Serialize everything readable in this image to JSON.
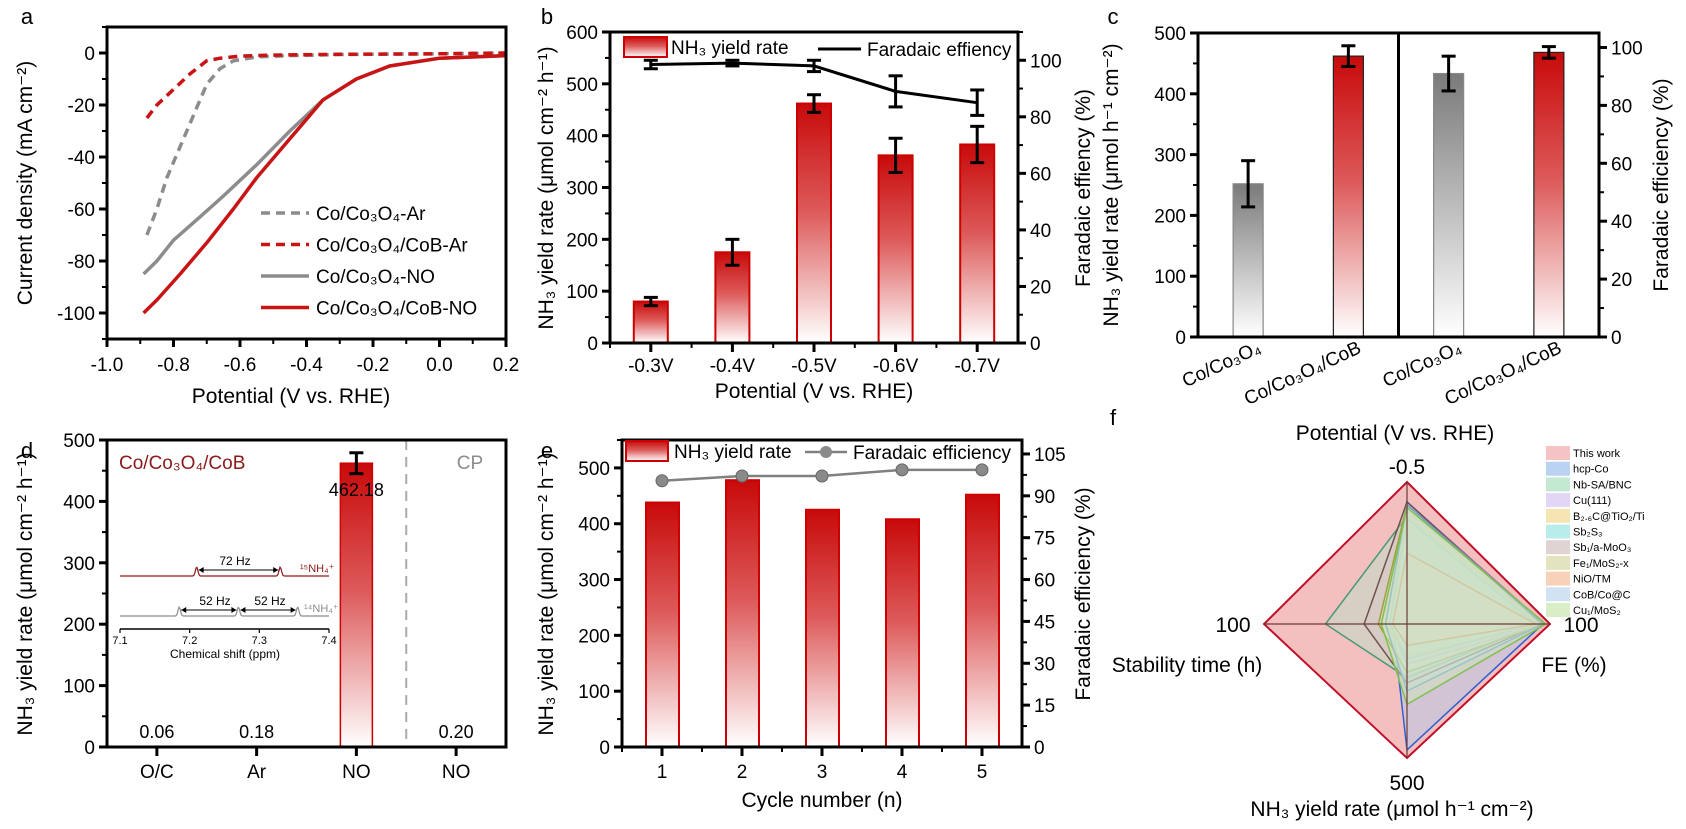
{
  "panel_labels": [
    "a",
    "b",
    "c",
    "d",
    "e",
    "f"
  ],
  "chart_data": [
    {
      "panel": "a",
      "type": "line",
      "xlabel": "Potential (V vs. RHE)",
      "ylabel": "Current density (mA cm⁻²)",
      "xlim": [
        -1.0,
        0.2
      ],
      "ylim": [
        -110,
        10
      ],
      "xticks": [
        "-1.0",
        "-0.8",
        "-0.6",
        "-0.4",
        "-0.2",
        "0.0",
        "0.2"
      ],
      "yticks": [
        "0",
        "-20",
        "-40",
        "-60",
        "-80",
        "-100"
      ],
      "legend_position": "bottom-right",
      "series": [
        {
          "name": "Co/Co₃O₄-Ar",
          "color": "#8c8c8c",
          "dashed": true,
          "x": [
            -0.88,
            -0.85,
            -0.82,
            -0.78,
            -0.74,
            -0.7,
            -0.66,
            -0.62,
            -0.55,
            -0.45,
            -0.3,
            0,
            0.2
          ],
          "y": [
            -70,
            -60,
            -48,
            -36,
            -24,
            -12,
            -6,
            -3,
            -1.5,
            -1,
            -0.6,
            -0.3,
            0
          ]
        },
        {
          "name": "Co/Co₃O₄/CoB-Ar",
          "color": "#c81414",
          "dashed": true,
          "x": [
            -0.88,
            -0.85,
            -0.8,
            -0.75,
            -0.7,
            -0.66,
            -0.6,
            -0.5,
            -0.3,
            0,
            0.2
          ],
          "y": [
            -25,
            -20,
            -14,
            -8,
            -3,
            -2,
            -1.2,
            -0.8,
            -0.5,
            -0.3,
            0
          ]
        },
        {
          "name": "Co/Co₃O₄-NO",
          "color": "#8c8c8c",
          "dashed": false,
          "x": [
            -0.89,
            -0.85,
            -0.8,
            -0.72,
            -0.65,
            -0.55,
            -0.45,
            -0.35,
            -0.25,
            -0.15,
            0,
            0.2
          ],
          "y": [
            -85,
            -80,
            -72,
            -63,
            -55,
            -43,
            -30,
            -18,
            -10,
            -5,
            -2,
            -1
          ]
        },
        {
          "name": "Co/Co₃O₄/CoB-NO",
          "color": "#c81414",
          "dashed": false,
          "x": [
            -0.89,
            -0.85,
            -0.78,
            -0.7,
            -0.62,
            -0.55,
            -0.45,
            -0.35,
            -0.25,
            -0.15,
            0,
            0.2
          ],
          "y": [
            -100,
            -95,
            -85,
            -73,
            -60,
            -48,
            -33,
            -18,
            -10,
            -5,
            -2,
            -1
          ]
        }
      ]
    },
    {
      "panel": "b",
      "type": "bar",
      "categories": [
        "-0.3V",
        "-0.4V",
        "-0.5V",
        "-0.6V",
        "-0.7V"
      ],
      "xlabel": "Potential (V vs. RHE)",
      "ylabel": "NH₃ yield rate (μmol cm⁻² h⁻¹)",
      "y2label": "Faradaic effiency (%)",
      "ylim": [
        0,
        600
      ],
      "y2lim": [
        0,
        110
      ],
      "yticks": [
        "0",
        "100",
        "200",
        "300",
        "400",
        "500",
        "600"
      ],
      "y2ticks": [
        "0",
        "20",
        "40",
        "60",
        "80",
        "100"
      ],
      "series": [
        {
          "name": "NH₃ yield rate",
          "type": "bar",
          "values": [
            80,
            175,
            462,
            362,
            383
          ],
          "errors": [
            8,
            25,
            17,
            33,
            35
          ]
        },
        {
          "name": "Faradaic effiency",
          "type": "line",
          "axis": "right",
          "values": [
            98.5,
            99,
            98,
            89,
            85
          ],
          "errors": [
            1.5,
            1,
            2,
            5.5,
            4.5
          ]
        }
      ]
    },
    {
      "panel": "c",
      "type": "bar",
      "categories": [
        "Co/Co₃O₄",
        "Co/Co₃O₄/CoB",
        "Co/Co₃O₄",
        "Co/Co₃O₄/CoB"
      ],
      "xlabel": "Potential (V vs. RHE)",
      "ylabel": "NH₃ yield rate (μmol h⁻¹ cm⁻²)",
      "y2label": "Faradaic efficiency (%)",
      "ylim": [
        0,
        500
      ],
      "y2lim": [
        0,
        105
      ],
      "yticks": [
        "0",
        "100",
        "200",
        "300",
        "400",
        "500"
      ],
      "y2ticks": [
        "0",
        "20",
        "40",
        "60",
        "80",
        "100"
      ],
      "left_group": {
        "values": [
          252,
          462
        ],
        "errors": [
          38,
          17
        ]
      },
      "right_group": {
        "values": [
          91,
          98.3
        ],
        "errors": [
          6,
          2
        ]
      },
      "colors": {
        "Co/Co₃O₄": "#7a7a7a",
        "Co/Co₃O₄/CoB": "#c80a0a"
      }
    },
    {
      "panel": "d",
      "type": "bar",
      "categories": [
        "O/C",
        "Ar",
        "NO",
        "NO"
      ],
      "ylabel": "NH₃ yield rate (μmol cm⁻² h⁻¹)",
      "ylim": [
        0,
        500
      ],
      "yticks": [
        "0",
        "100",
        "200",
        "300",
        "400",
        "500"
      ],
      "values": [
        0.06,
        0.18,
        462.18,
        0.2
      ],
      "value_labels": [
        "0.06",
        "0.18",
        "462.18",
        "0.20"
      ],
      "errors": [
        0,
        0,
        17,
        0
      ],
      "group_labels": [
        "Co/Co₃O₄/CoB",
        "CP"
      ],
      "inset": {
        "type": "line",
        "xlabel": "Chemical shift (ppm)",
        "xlim": [
          7.1,
          7.4
        ],
        "xticks": [
          "7.1",
          "7.2",
          "7.3",
          "7.4"
        ],
        "series": [
          {
            "name": "¹⁵NH₄⁺",
            "color": "#8b1a1a",
            "peaks": [
              7.21,
              7.33
            ]
          },
          {
            "name": "¹⁴NH₄⁺",
            "color": "#8c8c8c",
            "peaks": [
              7.185,
              7.27,
              7.355
            ]
          }
        ],
        "annotations": [
          "72 Hz",
          "52 Hz",
          "52 Hz"
        ]
      }
    },
    {
      "panel": "e",
      "type": "bar",
      "categories": [
        "1",
        "2",
        "3",
        "4",
        "5"
      ],
      "xlabel": "Cycle number (n)",
      "ylabel": "NH₃ yield rate (μmol cm⁻² h⁻¹)",
      "y2label": "Faradaic efficiency (%)",
      "ylim": [
        0,
        550
      ],
      "y2lim": [
        0,
        110
      ],
      "yticks": [
        "0",
        "100",
        "200",
        "300",
        "400",
        "500"
      ],
      "y2ticks": [
        "0",
        "15",
        "30",
        "45",
        "60",
        "75",
        "90",
        "105"
      ],
      "series": [
        {
          "name": "NH₃ yield rate",
          "type": "bar",
          "values": [
            438,
            478,
            425,
            408,
            452
          ]
        },
        {
          "name": "Faradaic efficiency",
          "type": "line",
          "axis": "right",
          "values": [
            95.4,
            97.1,
            97.1,
            99.3,
            99.3
          ]
        }
      ]
    },
    {
      "panel": "f",
      "type": "radar",
      "axes": [
        {
          "key": "potential",
          "title": "",
          "tick": "-0.5",
          "max": -0.5
        },
        {
          "key": "fe",
          "title": "FE (%)",
          "tick": "100",
          "max": 100
        },
        {
          "key": "yield",
          "title": "NH₃ yield rate (μmol h⁻¹ cm⁻²)",
          "tick": "500",
          "max": 500
        },
        {
          "key": "stability",
          "title": "Stability time (h)",
          "tick": "100",
          "max": 100
        }
      ],
      "legend_position": "right",
      "series": [
        {
          "name": "This work",
          "fill": "#f2b4b4",
          "stroke": "#c0102a",
          "values": [
            -0.5,
            100,
            500,
            100
          ]
        },
        {
          "name": "hcp-Co",
          "fill": "#a9c8ef",
          "stroke": "#3060d0",
          "values": [
            -0.43,
            95,
            470,
            10
          ]
        },
        {
          "name": "Nb-SA/BNC",
          "fill": "#b5e3c8",
          "stroke": "#4a9a78",
          "values": [
            -0.38,
            92,
            200,
            57
          ]
        },
        {
          "name": "Cu(111)",
          "fill": "#dccaf2",
          "stroke": "#a070d0",
          "values": [
            -0.43,
            96,
            150,
            12
          ]
        },
        {
          "name": "B₂.₆C@TiO₂/Ti",
          "fill": "#f2dfa0",
          "stroke": "#d0a030",
          "values": [
            -0.4,
            93,
            120,
            15
          ]
        },
        {
          "name": "Sb₂S₃",
          "fill": "#a8e8e6",
          "stroke": "#30b0b0",
          "values": [
            -0.37,
            90,
            130,
            12
          ]
        },
        {
          "name": "Sb₁/a-MoO₃",
          "fill": "#d8c8c8",
          "stroke": "#705050",
          "values": [
            -0.43,
            94,
            220,
            30
          ]
        },
        {
          "name": "Fe₁/MoS₂-x",
          "fill": "#dcdcb0",
          "stroke": "#a0a040",
          "values": [
            -0.42,
            96,
            180,
            20
          ]
        },
        {
          "name": "NiO/TM",
          "fill": "#f6c6a8",
          "stroke": "#e08040",
          "values": [
            -0.25,
            90,
            80,
            10
          ]
        },
        {
          "name": "CoB/Co@C",
          "fill": "#c6dcf0",
          "stroke": "#70a0d0",
          "values": [
            -0.42,
            95,
            250,
            15
          ]
        },
        {
          "name": "Cu₁/MoS₂",
          "fill": "#cfeab8",
          "stroke": "#80c050",
          "values": [
            -0.41,
            97,
            300,
            18
          ]
        }
      ]
    }
  ]
}
